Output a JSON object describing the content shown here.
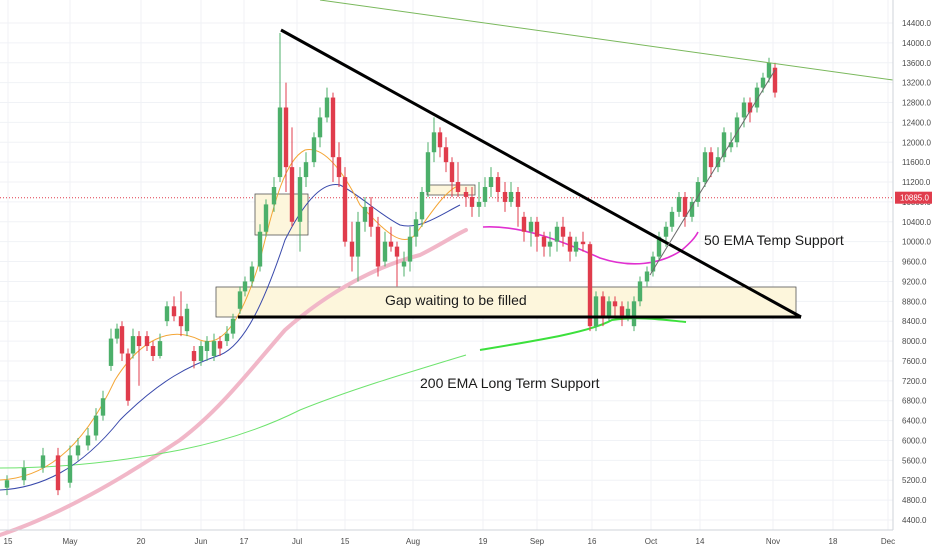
{
  "chart_data": {
    "type": "candlestick",
    "x_ticks": [
      "15",
      "May",
      "20",
      "Jun",
      "17",
      "Jul",
      "15",
      "Aug",
      "19",
      "Sep",
      "16",
      "Oct",
      "14",
      "Nov",
      "18",
      "Dec"
    ],
    "y_ticks": [
      4400.0,
      4800.0,
      5200.0,
      5600.0,
      6000.0,
      6400.0,
      6800.0,
      7200.0,
      7600.0,
      8000.0,
      8400.0,
      8800.0,
      9200.0,
      9600.0,
      10000.0,
      10400.0,
      10800.0,
      11200.0,
      11600.0,
      12000.0,
      12400.0,
      12800.0,
      13200.0,
      13600.0,
      14000.0,
      14400.0
    ],
    "ylim": [
      4150,
      14650
    ],
    "current_price": "10885.0",
    "colors": {
      "up": "#4caf6a",
      "down": "#e03c4c",
      "ema_short": "#f4a636",
      "ema_mid": "#3949ab",
      "ema_long": "#f1b7c8",
      "ema_200": "#6ee36e",
      "ema_50_projection": "#e030d0",
      "ema_200_projection": "#3ce03c",
      "price_line": "#e03c4c",
      "gap_fill": "#fdf6dc"
    },
    "candles": [
      {
        "x": 7,
        "o": 5050,
        "c": 5200,
        "h": 5300,
        "l": 4900
      },
      {
        "x": 24,
        "o": 5200,
        "c": 5450,
        "h": 5600,
        "l": 5100
      },
      {
        "x": 43,
        "o": 5450,
        "c": 5700,
        "h": 5850,
        "l": 5350
      },
      {
        "x": 58,
        "o": 5700,
        "c": 5000,
        "h": 5850,
        "l": 4900
      },
      {
        "x": 70,
        "o": 5150,
        "c": 5700,
        "h": 5900,
        "l": 5050
      },
      {
        "x": 78,
        "o": 5700,
        "c": 5900,
        "h": 6050,
        "l": 5600
      },
      {
        "x": 88,
        "o": 5900,
        "c": 6100,
        "h": 6250,
        "l": 5800
      },
      {
        "x": 96,
        "o": 6100,
        "c": 6500,
        "h": 6650,
        "l": 6000
      },
      {
        "x": 103,
        "o": 6500,
        "c": 6850,
        "h": 7000,
        "l": 6400
      },
      {
        "x": 111,
        "o": 7500,
        "c": 8050,
        "h": 8250,
        "l": 7400
      },
      {
        "x": 117,
        "o": 8050,
        "c": 8250,
        "h": 8350,
        "l": 7950
      },
      {
        "x": 122,
        "o": 8300,
        "c": 7750,
        "h": 8400,
        "l": 7600
      },
      {
        "x": 128,
        "o": 7750,
        "c": 6800,
        "h": 7850,
        "l": 6700
      },
      {
        "x": 133,
        "o": 7750,
        "c": 8100,
        "h": 8250,
        "l": 7650
      },
      {
        "x": 139,
        "o": 8100,
        "c": 7900,
        "h": 8200,
        "l": 7100
      },
      {
        "x": 147,
        "o": 8100,
        "c": 7900,
        "h": 8200,
        "l": 7800
      },
      {
        "x": 153,
        "o": 7900,
        "c": 7700,
        "h": 8000,
        "l": 7600
      },
      {
        "x": 160,
        "o": 7700,
        "c": 8000,
        "h": 8150,
        "l": 7650
      },
      {
        "x": 167,
        "o": 8400,
        "c": 8700,
        "h": 8800,
        "l": 8300
      },
      {
        "x": 174,
        "o": 8700,
        "c": 8500,
        "h": 8900,
        "l": 8400
      },
      {
        "x": 181,
        "o": 8500,
        "c": 8300,
        "h": 9000,
        "l": 8100
      },
      {
        "x": 187,
        "o": 8200,
        "c": 8650,
        "h": 8750,
        "l": 8100
      },
      {
        "x": 194,
        "o": 7800,
        "c": 7600,
        "h": 7900,
        "l": 7450
      },
      {
        "x": 201,
        "o": 7600,
        "c": 7900,
        "h": 8000,
        "l": 7500
      },
      {
        "x": 207,
        "o": 7800,
        "c": 8000,
        "h": 8100,
        "l": 7600
      },
      {
        "x": 214,
        "o": 7700,
        "c": 8000,
        "h": 8150,
        "l": 7600
      },
      {
        "x": 220,
        "o": 8000,
        "c": 7850,
        "h": 8100,
        "l": 7700
      },
      {
        "x": 227,
        "o": 8000,
        "c": 8150,
        "h": 8300,
        "l": 7900
      },
      {
        "x": 233,
        "o": 8150,
        "c": 8450,
        "h": 8550,
        "l": 8050
      },
      {
        "x": 240,
        "o": 8650,
        "c": 9000,
        "h": 9100,
        "l": 8550
      },
      {
        "x": 245,
        "o": 9000,
        "c": 9200,
        "h": 9300,
        "l": 8900
      },
      {
        "x": 252,
        "o": 9200,
        "c": 9500,
        "h": 9600,
        "l": 9100
      },
      {
        "x": 260,
        "o": 9500,
        "c": 10200,
        "h": 10350,
        "l": 9400
      },
      {
        "x": 266,
        "o": 10200,
        "c": 10750,
        "h": 10850,
        "l": 10100
      },
      {
        "x": 274,
        "o": 10750,
        "c": 11100,
        "h": 11300,
        "l": 10600
      },
      {
        "x": 280,
        "o": 11300,
        "c": 12700,
        "h": 14200,
        "l": 11200
      },
      {
        "x": 286,
        "o": 12700,
        "c": 11500,
        "h": 13200,
        "l": 11000
      },
      {
        "x": 292,
        "o": 11500,
        "c": 10400,
        "h": 12300,
        "l": 10300
      },
      {
        "x": 300,
        "o": 10400,
        "c": 11300,
        "h": 11500,
        "l": 9800
      },
      {
        "x": 306,
        "o": 11300,
        "c": 11600,
        "h": 11800,
        "l": 11100
      },
      {
        "x": 314,
        "o": 11600,
        "c": 12100,
        "h": 12200,
        "l": 11500
      },
      {
        "x": 320,
        "o": 12100,
        "c": 12500,
        "h": 12700,
        "l": 11900
      },
      {
        "x": 327,
        "o": 12500,
        "c": 12900,
        "h": 13100,
        "l": 12400
      },
      {
        "x": 333,
        "o": 12900,
        "c": 11700,
        "h": 13000,
        "l": 11200
      },
      {
        "x": 339,
        "o": 11700,
        "c": 11300,
        "h": 12000,
        "l": 11100
      },
      {
        "x": 345,
        "o": 11300,
        "c": 10000,
        "h": 11500,
        "l": 9900
      },
      {
        "x": 352,
        "o": 10000,
        "c": 9700,
        "h": 10400,
        "l": 9400
      },
      {
        "x": 358,
        "o": 9700,
        "c": 10400,
        "h": 10600,
        "l": 9200
      },
      {
        "x": 365,
        "o": 10400,
        "c": 10700,
        "h": 10900,
        "l": 10200
      },
      {
        "x": 371,
        "o": 10700,
        "c": 10300,
        "h": 10900,
        "l": 10100
      },
      {
        "x": 378,
        "o": 10300,
        "c": 9500,
        "h": 10500,
        "l": 9300
      },
      {
        "x": 385,
        "o": 9600,
        "c": 10000,
        "h": 10200,
        "l": 9500
      },
      {
        "x": 391,
        "o": 10000,
        "c": 9900,
        "h": 10300,
        "l": 9800
      },
      {
        "x": 397,
        "o": 9900,
        "c": 9700,
        "h": 10000,
        "l": 9100
      },
      {
        "x": 404,
        "o": 9500,
        "c": 9600,
        "h": 9800,
        "l": 9300
      },
      {
        "x": 410,
        "o": 9600,
        "c": 10100,
        "h": 10300,
        "l": 9400
      },
      {
        "x": 416,
        "o": 10100,
        "c": 10450,
        "h": 10600,
        "l": 9900
      },
      {
        "x": 422,
        "o": 10450,
        "c": 11000,
        "h": 11100,
        "l": 10300
      },
      {
        "x": 428,
        "o": 11000,
        "c": 11800,
        "h": 12000,
        "l": 10900
      },
      {
        "x": 434,
        "o": 11800,
        "c": 12200,
        "h": 12500,
        "l": 11600
      },
      {
        "x": 440,
        "o": 12200,
        "c": 11900,
        "h": 12300,
        "l": 11700
      },
      {
        "x": 446,
        "o": 11900,
        "c": 11600,
        "h": 12100,
        "l": 11400
      },
      {
        "x": 452,
        "o": 11600,
        "c": 11200,
        "h": 11700,
        "l": 10900
      },
      {
        "x": 458,
        "o": 11200,
        "c": 11000,
        "h": 11600,
        "l": 10900
      },
      {
        "x": 466,
        "o": 11000,
        "c": 10900,
        "h": 11100,
        "l": 10700
      },
      {
        "x": 472,
        "o": 10900,
        "c": 10700,
        "h": 11100,
        "l": 10500
      },
      {
        "x": 479,
        "o": 10700,
        "c": 10800,
        "h": 11200,
        "l": 10500
      },
      {
        "x": 485,
        "o": 10800,
        "c": 11100,
        "h": 11300,
        "l": 10700
      },
      {
        "x": 491,
        "o": 11100,
        "c": 11300,
        "h": 11500,
        "l": 10900
      },
      {
        "x": 498,
        "o": 11300,
        "c": 11000,
        "h": 11400,
        "l": 10800
      },
      {
        "x": 505,
        "o": 11000,
        "c": 10800,
        "h": 11200,
        "l": 10600
      },
      {
        "x": 511,
        "o": 10800,
        "c": 11000,
        "h": 11200,
        "l": 10700
      },
      {
        "x": 518,
        "o": 11000,
        "c": 10700,
        "h": 11100,
        "l": 10300
      },
      {
        "x": 524,
        "o": 10500,
        "c": 10200,
        "h": 10600,
        "l": 10000
      },
      {
        "x": 531,
        "o": 10200,
        "c": 10400,
        "h": 10500,
        "l": 9900
      },
      {
        "x": 537,
        "o": 10400,
        "c": 10100,
        "h": 10500,
        "l": 9800
      },
      {
        "x": 544,
        "o": 10100,
        "c": 9900,
        "h": 10200,
        "l": 9700
      },
      {
        "x": 550,
        "o": 9900,
        "c": 10000,
        "h": 10200,
        "l": 9700
      },
      {
        "x": 557,
        "o": 10000,
        "c": 10300,
        "h": 10400,
        "l": 9800
      },
      {
        "x": 563,
        "o": 10300,
        "c": 10100,
        "h": 10500,
        "l": 9900
      },
      {
        "x": 570,
        "o": 10100,
        "c": 9800,
        "h": 10200,
        "l": 9600
      },
      {
        "x": 576,
        "o": 9800,
        "c": 10000,
        "h": 10100,
        "l": 9700
      },
      {
        "x": 583,
        "o": 10000,
        "c": 9950,
        "h": 10200,
        "l": 9800
      },
      {
        "x": 590,
        "o": 9950,
        "c": 8300,
        "h": 10000,
        "l": 8200
      },
      {
        "x": 596,
        "o": 8300,
        "c": 8900,
        "h": 9000,
        "l": 8200
      },
      {
        "x": 603,
        "o": 8900,
        "c": 8500,
        "h": 9000,
        "l": 8300
      },
      {
        "x": 609,
        "o": 8500,
        "c": 8800,
        "h": 8900,
        "l": 8400
      },
      {
        "x": 615,
        "o": 8800,
        "c": 8700,
        "h": 8900,
        "l": 8500
      },
      {
        "x": 622,
        "o": 8700,
        "c": 8500,
        "h": 8800,
        "l": 8300
      },
      {
        "x": 628,
        "o": 8500,
        "c": 8650,
        "h": 8800,
        "l": 8400
      },
      {
        "x": 634,
        "o": 8300,
        "c": 8800,
        "h": 8900,
        "l": 8200
      },
      {
        "x": 640,
        "o": 8800,
        "c": 9200,
        "h": 9300,
        "l": 8700
      },
      {
        "x": 647,
        "o": 9200,
        "c": 9400,
        "h": 9500,
        "l": 9100
      },
      {
        "x": 653,
        "o": 9400,
        "c": 9700,
        "h": 9800,
        "l": 9300
      },
      {
        "x": 659,
        "o": 9700,
        "c": 10100,
        "h": 10200,
        "l": 9600
      },
      {
        "x": 666,
        "o": 10100,
        "c": 10300,
        "h": 10400,
        "l": 9900
      },
      {
        "x": 672,
        "o": 10300,
        "c": 10600,
        "h": 10700,
        "l": 10200
      },
      {
        "x": 679,
        "o": 10600,
        "c": 10900,
        "h": 11000,
        "l": 10500
      },
      {
        "x": 685,
        "o": 10900,
        "c": 10500,
        "h": 11000,
        "l": 10300
      },
      {
        "x": 692,
        "o": 10500,
        "c": 10800,
        "h": 10900,
        "l": 10400
      },
      {
        "x": 698,
        "o": 10800,
        "c": 11200,
        "h": 11300,
        "l": 10700
      },
      {
        "x": 705,
        "o": 11200,
        "c": 11800,
        "h": 11900,
        "l": 11100
      },
      {
        "x": 711,
        "o": 11800,
        "c": 11500,
        "h": 11900,
        "l": 11300
      },
      {
        "x": 718,
        "o": 11500,
        "c": 11700,
        "h": 11900,
        "l": 11400
      },
      {
        "x": 724,
        "o": 11700,
        "c": 12200,
        "h": 12300,
        "l": 11600
      },
      {
        "x": 731,
        "o": 11900,
        "c": 12000,
        "h": 12200,
        "l": 11800
      },
      {
        "x": 737,
        "o": 12000,
        "c": 12500,
        "h": 12600,
        "l": 11900
      },
      {
        "x": 744,
        "o": 12500,
        "c": 12800,
        "h": 12900,
        "l": 12300
      },
      {
        "x": 750,
        "o": 12800,
        "c": 12600,
        "h": 12900,
        "l": 12400
      },
      {
        "x": 757,
        "o": 12700,
        "c": 13100,
        "h": 13200,
        "l": 12600
      },
      {
        "x": 763,
        "o": 13100,
        "c": 13300,
        "h": 13400,
        "l": 13000
      },
      {
        "x": 769,
        "o": 13300,
        "c": 13600,
        "h": 13700,
        "l": 13200
      },
      {
        "x": 775,
        "o": 13500,
        "c": 13000,
        "h": 13600,
        "l": 12900
      }
    ],
    "annotations": [
      {
        "key": "gap",
        "text": "Gap waiting to be filled"
      },
      {
        "key": "ema50",
        "text": "50 EMA Temp Support"
      },
      {
        "key": "ema200",
        "text": "200 EMA Long Term Support"
      }
    ]
  }
}
